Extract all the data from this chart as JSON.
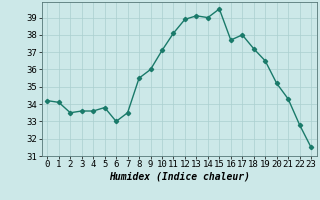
{
  "x": [
    0,
    1,
    2,
    3,
    4,
    5,
    6,
    7,
    8,
    9,
    10,
    11,
    12,
    13,
    14,
    15,
    16,
    17,
    18,
    19,
    20,
    21,
    22,
    23
  ],
  "y": [
    34.2,
    34.1,
    33.5,
    33.6,
    33.6,
    33.8,
    33.0,
    33.5,
    35.5,
    36.0,
    37.1,
    38.1,
    38.9,
    39.1,
    39.0,
    39.5,
    37.7,
    38.0,
    37.2,
    36.5,
    35.2,
    34.3,
    32.8,
    31.5
  ],
  "line_color": "#1a7a6a",
  "marker": "D",
  "marker_size": 2.2,
  "bg_color": "#cce8e8",
  "grid_color": "#aacfcf",
  "xlabel": "Humidex (Indice chaleur)",
  "xlim": [
    -0.5,
    23.5
  ],
  "ylim": [
    31,
    39.9
  ],
  "yticks": [
    31,
    32,
    33,
    34,
    35,
    36,
    37,
    38,
    39
  ],
  "xticks": [
    0,
    1,
    2,
    3,
    4,
    5,
    6,
    7,
    8,
    9,
    10,
    11,
    12,
    13,
    14,
    15,
    16,
    17,
    18,
    19,
    20,
    21,
    22,
    23
  ],
  "xlabel_fontsize": 7.0,
  "tick_fontsize": 6.5,
  "line_width": 1.0
}
